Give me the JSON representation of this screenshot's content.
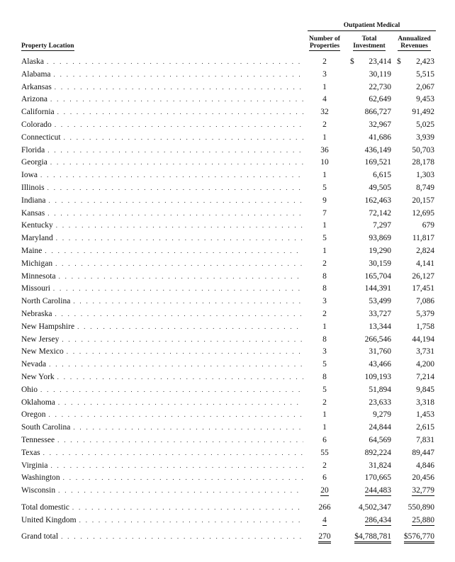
{
  "header": {
    "group": "Outpatient Medical",
    "location": "Property Location",
    "num_line1": "Number of",
    "num_line2": "Properties",
    "inv_line1": "Total",
    "inv_line2": "Investment",
    "rev_line1": "Annualized",
    "rev_line2": "Revenues"
  },
  "leader": ". . . . . . . . . . . . . . . . . . . . . . . . . . . . . . . . . . . . . . . . . . . . . . . . . . . . . . . . . . . . . . . . . . . . . . . . . . .",
  "rows": [
    {
      "loc": "Alaska",
      "num": "2",
      "inv_cur": "$",
      "inv": "23,414",
      "rev_cur": "$",
      "rev": "2,423"
    },
    {
      "loc": "Alabama",
      "num": "3",
      "inv": "30,119",
      "rev": "5,515"
    },
    {
      "loc": "Arkansas",
      "num": "1",
      "inv": "22,730",
      "rev": "2,067"
    },
    {
      "loc": "Arizona",
      "num": "4",
      "inv": "62,649",
      "rev": "9,453"
    },
    {
      "loc": "California",
      "num": "32",
      "inv": "866,727",
      "rev": "91,492"
    },
    {
      "loc": "Colorado",
      "num": "2",
      "inv": "32,967",
      "rev": "5,025"
    },
    {
      "loc": "Connecticut",
      "num": "1",
      "inv": "41,686",
      "rev": "3,939"
    },
    {
      "loc": "Florida",
      "num": "36",
      "inv": "436,149",
      "rev": "50,703"
    },
    {
      "loc": "Georgia",
      "num": "10",
      "inv": "169,521",
      "rev": "28,178"
    },
    {
      "loc": "Iowa",
      "num": "1",
      "inv": "6,615",
      "rev": "1,303"
    },
    {
      "loc": "Illinois",
      "num": "5",
      "inv": "49,505",
      "rev": "8,749"
    },
    {
      "loc": "Indiana",
      "num": "9",
      "inv": "162,463",
      "rev": "20,157"
    },
    {
      "loc": "Kansas",
      "num": "7",
      "inv": "72,142",
      "rev": "12,695"
    },
    {
      "loc": "Kentucky",
      "num": "1",
      "inv": "7,297",
      "rev": "679"
    },
    {
      "loc": "Maryland",
      "num": "5",
      "inv": "93,869",
      "rev": "11,817"
    },
    {
      "loc": "Maine",
      "num": "1",
      "inv": "19,290",
      "rev": "2,824"
    },
    {
      "loc": "Michigan",
      "num": "2",
      "inv": "30,159",
      "rev": "4,141"
    },
    {
      "loc": "Minnesota",
      "num": "8",
      "inv": "165,704",
      "rev": "26,127"
    },
    {
      "loc": "Missouri",
      "num": "8",
      "inv": "144,391",
      "rev": "17,451"
    },
    {
      "loc": "North Carolina",
      "num": "3",
      "inv": "53,499",
      "rev": "7,086"
    },
    {
      "loc": "Nebraska",
      "num": "2",
      "inv": "33,727",
      "rev": "5,379"
    },
    {
      "loc": "New Hampshire",
      "num": "1",
      "inv": "13,344",
      "rev": "1,758"
    },
    {
      "loc": "New Jersey",
      "num": "8",
      "inv": "266,546",
      "rev": "44,194"
    },
    {
      "loc": "New Mexico",
      "num": "3",
      "inv": "31,760",
      "rev": "3,731"
    },
    {
      "loc": "Nevada",
      "num": "5",
      "inv": "43,466",
      "rev": "4,200"
    },
    {
      "loc": "New York",
      "num": "8",
      "inv": "109,193",
      "rev": "7,214"
    },
    {
      "loc": "Ohio",
      "num": "5",
      "inv": "51,894",
      "rev": "9,845"
    },
    {
      "loc": "Oklahoma",
      "num": "2",
      "inv": "23,633",
      "rev": "3,318"
    },
    {
      "loc": "Oregon",
      "num": "1",
      "inv": "9,279",
      "rev": "1,453"
    },
    {
      "loc": "South Carolina",
      "num": "1",
      "inv": "24,844",
      "rev": "2,615"
    },
    {
      "loc": "Tennessee",
      "num": "6",
      "inv": "64,569",
      "rev": "7,831"
    },
    {
      "loc": "Texas",
      "num": "55",
      "inv": "892,224",
      "rev": "89,447"
    },
    {
      "loc": "Virginia",
      "num": "2",
      "inv": "31,824",
      "rev": "4,846"
    },
    {
      "loc": "Washington",
      "num": "6",
      "inv": "170,665",
      "rev": "20,456"
    },
    {
      "loc": "Wisconsin",
      "num": "20",
      "inv": "244,483",
      "rev": "32,779",
      "ul": "single"
    }
  ],
  "totals": [
    {
      "loc": "Total domestic",
      "num": "266",
      "inv": "4,502,347",
      "rev": "550,890"
    },
    {
      "loc": "United Kingdom",
      "num": "4",
      "inv": "286,434",
      "rev": "25,880",
      "ul": "single"
    }
  ],
  "grand": {
    "loc": "Grand total",
    "num": "270",
    "inv": "$4,788,781",
    "rev": "$576,770",
    "ul": "double"
  }
}
